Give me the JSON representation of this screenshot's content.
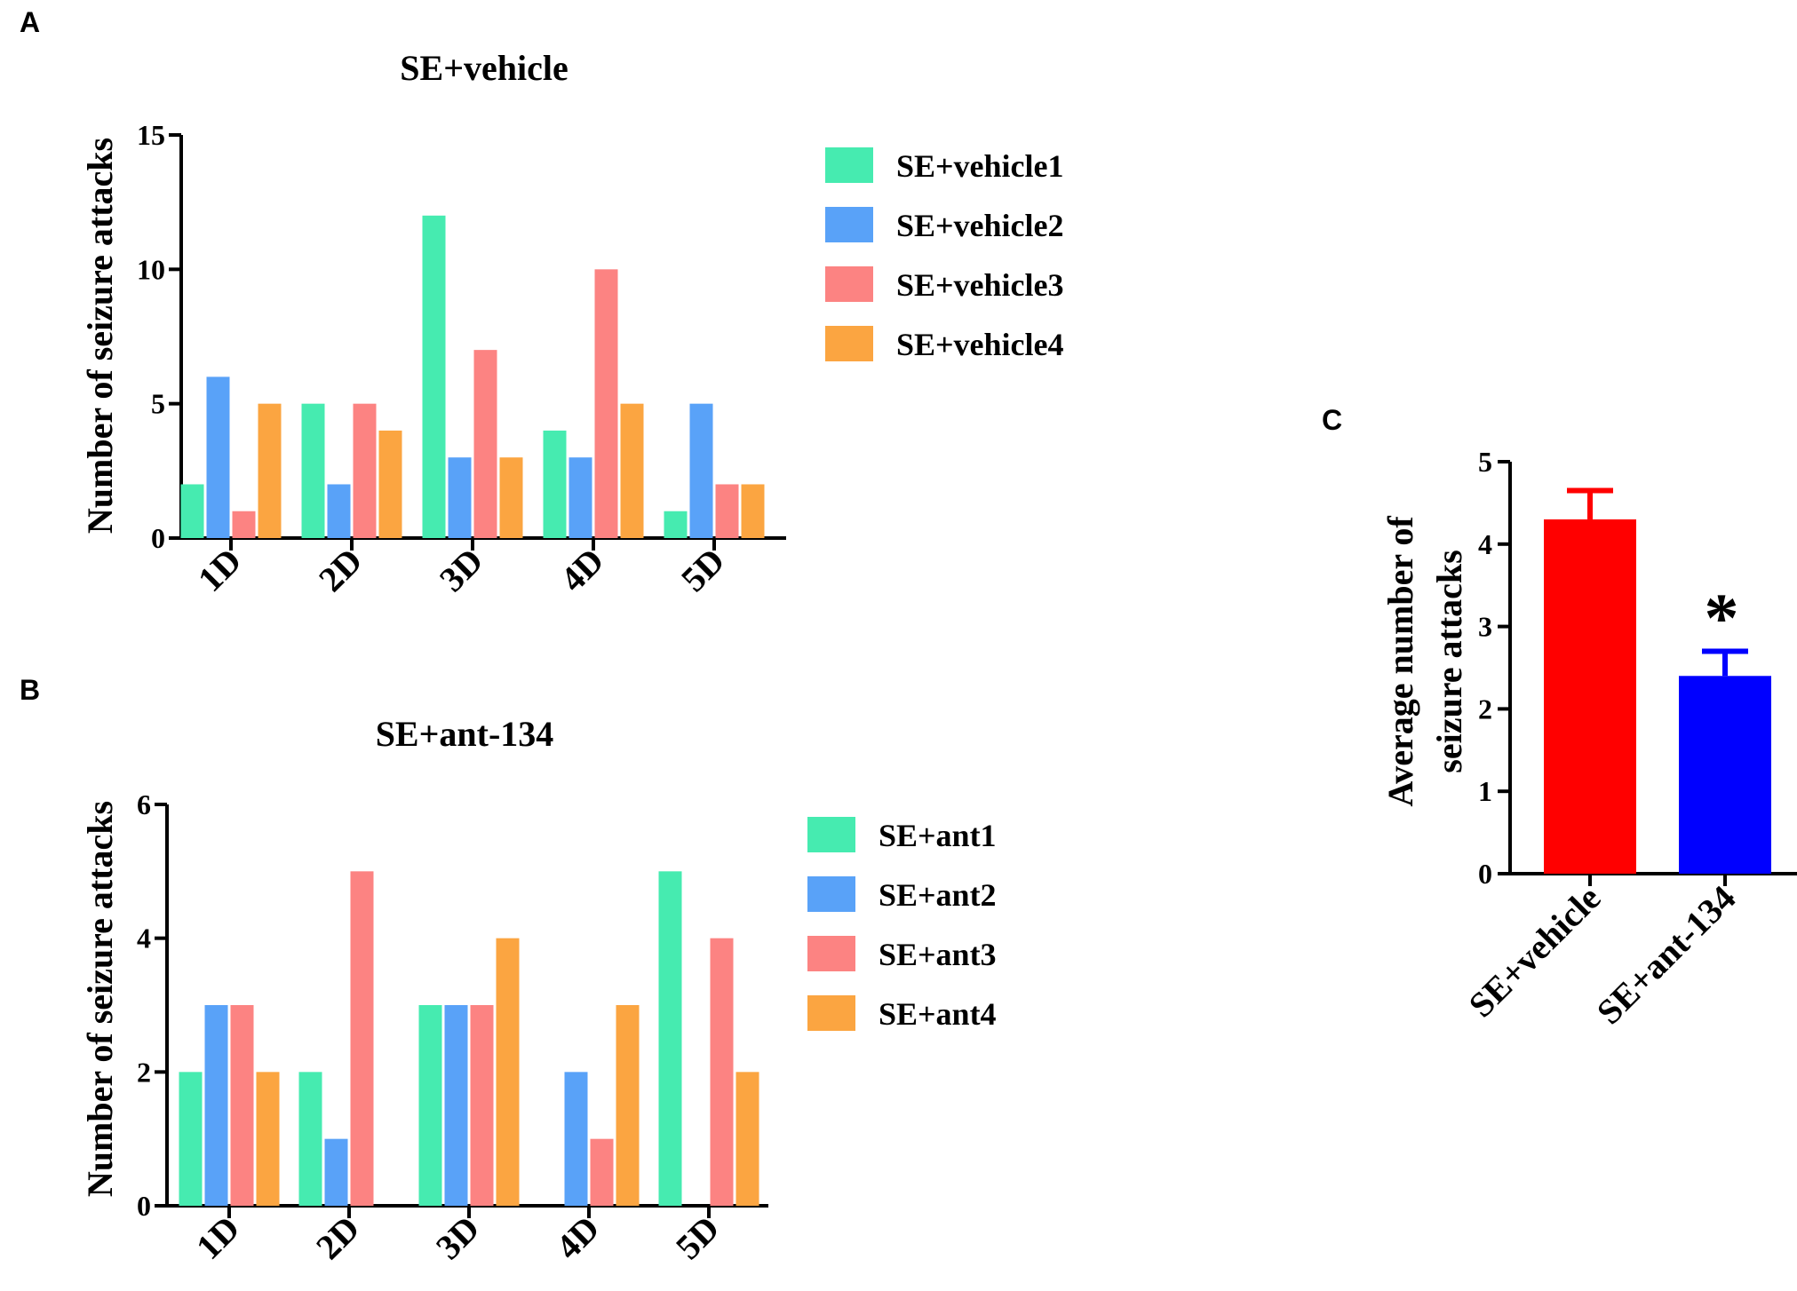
{
  "panel_letters": {
    "a": "A",
    "b": "B",
    "c": "C"
  },
  "colors": {
    "series1": "#46EBB0",
    "series2": "#59A2F8",
    "series3": "#FC8382",
    "series4": "#FBA541",
    "vehicle_bar": "#FF0000",
    "ant_bar": "#0000FF",
    "axis": "#000000"
  },
  "chart_data": [
    {
      "id": "A",
      "type": "bar",
      "title": "SE+vehicle",
      "xlabel": "",
      "ylabel": "Number of seizure attacks",
      "categories": [
        "1D",
        "2D",
        "3D",
        "4D",
        "5D"
      ],
      "yticks": [
        "0",
        "5",
        "10",
        "15"
      ],
      "ylim": [
        0,
        15
      ],
      "legend_position": "right",
      "series": [
        {
          "name": "SE+vehicle1",
          "values": [
            2,
            5,
            12,
            4,
            1
          ]
        },
        {
          "name": "SE+vehicle2",
          "values": [
            6,
            2,
            3,
            3,
            5
          ]
        },
        {
          "name": "SE+vehicle3",
          "values": [
            1,
            5,
            7,
            10,
            2
          ]
        },
        {
          "name": "SE+vehicle4",
          "values": [
            5,
            4,
            3,
            5,
            2
          ]
        }
      ]
    },
    {
      "id": "B",
      "type": "bar",
      "title": "SE+ant-134",
      "xlabel": "",
      "ylabel": "Number of seizure attacks",
      "categories": [
        "1D",
        "2D",
        "3D",
        "4D",
        "5D"
      ],
      "yticks": [
        "0",
        "2",
        "4",
        "6"
      ],
      "ylim": [
        0,
        6
      ],
      "legend_position": "right",
      "series": [
        {
          "name": "SE+ant1",
          "values": [
            2,
            2,
            3,
            0,
            5
          ]
        },
        {
          "name": "SE+ant2",
          "values": [
            3,
            1,
            3,
            2,
            0
          ]
        },
        {
          "name": "SE+ant3",
          "values": [
            3,
            5,
            3,
            1,
            4
          ]
        },
        {
          "name": "SE+ant4",
          "values": [
            2,
            0,
            4,
            3,
            2
          ]
        }
      ]
    },
    {
      "id": "C",
      "type": "bar",
      "title": "",
      "xlabel": "",
      "ylabel_line1": "Average number of",
      "ylabel_line2": "seizure attacks",
      "categories": [
        "SE+vehicle",
        "SE+ant-134"
      ],
      "values": [
        4.3,
        2.4
      ],
      "errors": [
        0.35,
        0.3
      ],
      "yticks": [
        "0",
        "1",
        "2",
        "3",
        "4",
        "5"
      ],
      "ylim": [
        0,
        5
      ],
      "annotation": "*"
    }
  ]
}
